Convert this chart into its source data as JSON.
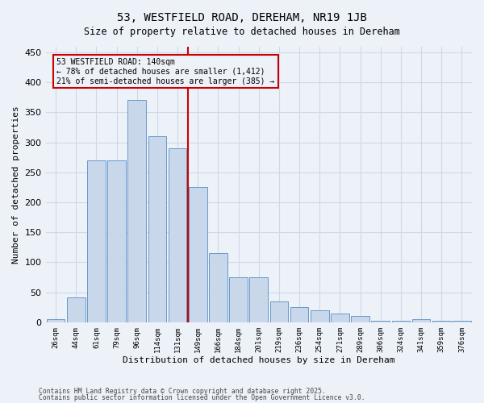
{
  "title": "53, WESTFIELD ROAD, DEREHAM, NR19 1JB",
  "subtitle": "Size of property relative to detached houses in Dereham",
  "xlabel": "Distribution of detached houses by size in Dereham",
  "ylabel": "Number of detached properties",
  "footer1": "Contains HM Land Registry data © Crown copyright and database right 2025.",
  "footer2": "Contains public sector information licensed under the Open Government Licence v3.0.",
  "annotation_title": "53 WESTFIELD ROAD: 140sqm",
  "annotation_line1": "← 78% of detached houses are smaller (1,412)",
  "annotation_line2": "21% of semi-detached houses are larger (385) →",
  "bar_color": "#c8d8ea",
  "bar_edge_color": "#6699cc",
  "vline_color": "#cc0000",
  "background_color": "#edf1f8",
  "grid_color": "#d0d8e8",
  "categories": [
    "26sqm",
    "44sqm",
    "61sqm",
    "79sqm",
    "96sqm",
    "114sqm",
    "131sqm",
    "149sqm",
    "166sqm",
    "184sqm",
    "201sqm",
    "219sqm",
    "236sqm",
    "254sqm",
    "271sqm",
    "289sqm",
    "306sqm",
    "324sqm",
    "341sqm",
    "359sqm",
    "376sqm"
  ],
  "values": [
    5,
    42,
    270,
    270,
    370,
    310,
    290,
    225,
    115,
    75,
    75,
    35,
    25,
    20,
    15,
    10,
    2,
    2,
    5,
    2,
    2
  ],
  "ylim": [
    0,
    460
  ],
  "yticks": [
    0,
    50,
    100,
    150,
    200,
    250,
    300,
    350,
    400,
    450
  ],
  "vline_x": 6.5,
  "figsize": [
    6.0,
    5.0
  ],
  "dpi": 100
}
